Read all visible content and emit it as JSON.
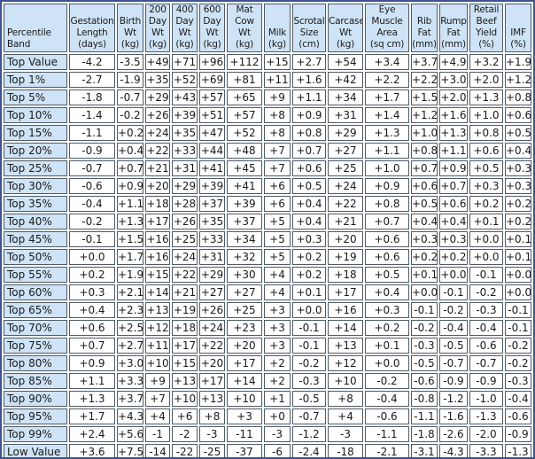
{
  "colors": {
    "header_bg": "#cfe3f6",
    "cell_border": "#4f5b66",
    "outer_border": "#3d548f",
    "text": "#1a1a1a"
  },
  "table": {
    "columns": [
      {
        "label": "Percentile\nBand"
      },
      {
        "label": "Gestation\nLength\n(days)"
      },
      {
        "label": "Birth\nWt\n(kg)"
      },
      {
        "label": "200\nDay\nWt\n(kg)"
      },
      {
        "label": "400\nDay\nWt\n(kg)"
      },
      {
        "label": "600\nDay\nWt\n(kg)"
      },
      {
        "label": "Mat\nCow\nWt\n(kg)"
      },
      {
        "label": "Milk\n(kg)"
      },
      {
        "label": "Scrotal\nSize\n(cm)"
      },
      {
        "label": "Carcase\nWt\n(kg)"
      },
      {
        "label": "Eye\nMuscle\nArea\n(sq cm)"
      },
      {
        "label": "Rib\nFat\n(mm)"
      },
      {
        "label": "Rump\nFat\n(mm)"
      },
      {
        "label": "Retail\nBeef\nYield\n(%)"
      },
      {
        "label": "IMF\n(%)"
      }
    ],
    "rows": [
      {
        "band": "Top Value",
        "values": [
          "-4.2",
          "-3.5",
          "+49",
          "+71",
          "+96",
          "+112",
          "+15",
          "+2.7",
          "+54",
          "+3.4",
          "+3.7",
          "+4.9",
          "+3.2",
          "+1.9"
        ]
      },
      {
        "band": "Top 1%",
        "values": [
          "-2.7",
          "-1.9",
          "+35",
          "+52",
          "+69",
          "+81",
          "+11",
          "+1.6",
          "+42",
          "+2.2",
          "+2.2",
          "+3.0",
          "+2.0",
          "+1.2"
        ]
      },
      {
        "band": "Top 5%",
        "values": [
          "-1.8",
          "-0.7",
          "+29",
          "+43",
          "+57",
          "+65",
          "+9",
          "+1.1",
          "+34",
          "+1.7",
          "+1.5",
          "+2.0",
          "+1.3",
          "+0.8"
        ]
      },
      {
        "band": "Top 10%",
        "values": [
          "-1.4",
          "-0.2",
          "+26",
          "+39",
          "+51",
          "+57",
          "+8",
          "+0.9",
          "+31",
          "+1.4",
          "+1.2",
          "+1.6",
          "+1.0",
          "+0.6"
        ]
      },
      {
        "band": "Top 15%",
        "values": [
          "-1.1",
          "+0.2",
          "+24",
          "+35",
          "+47",
          "+52",
          "+8",
          "+0.8",
          "+29",
          "+1.3",
          "+1.0",
          "+1.3",
          "+0.8",
          "+0.5"
        ]
      },
      {
        "band": "Top 20%",
        "values": [
          "-0.9",
          "+0.4",
          "+22",
          "+33",
          "+44",
          "+48",
          "+7",
          "+0.7",
          "+27",
          "+1.1",
          "+0.8",
          "+1.1",
          "+0.6",
          "+0.4"
        ]
      },
      {
        "band": "Top 25%",
        "values": [
          "-0.7",
          "+0.7",
          "+21",
          "+31",
          "+41",
          "+45",
          "+7",
          "+0.6",
          "+25",
          "+1.0",
          "+0.7",
          "+0.9",
          "+0.5",
          "+0.3"
        ]
      },
      {
        "band": "Top 30%",
        "values": [
          "-0.6",
          "+0.9",
          "+20",
          "+29",
          "+39",
          "+41",
          "+6",
          "+0.5",
          "+24",
          "+0.9",
          "+0.6",
          "+0.7",
          "+0.3",
          "+0.3"
        ]
      },
      {
        "band": "Top 35%",
        "values": [
          "-0.4",
          "+1.1",
          "+18",
          "+28",
          "+37",
          "+39",
          "+6",
          "+0.4",
          "+22",
          "+0.8",
          "+0.5",
          "+0.6",
          "+0.2",
          "+0.2"
        ]
      },
      {
        "band": "Top 40%",
        "values": [
          "-0.2",
          "+1.3",
          "+17",
          "+26",
          "+35",
          "+37",
          "+5",
          "+0.4",
          "+21",
          "+0.7",
          "+0.4",
          "+0.4",
          "+0.1",
          "+0.2"
        ]
      },
      {
        "band": "Top 45%",
        "values": [
          "-0.1",
          "+1.5",
          "+16",
          "+25",
          "+33",
          "+34",
          "+5",
          "+0.3",
          "+20",
          "+0.6",
          "+0.3",
          "+0.3",
          "+0.0",
          "+0.1"
        ]
      },
      {
        "band": "Top 50%",
        "values": [
          "+0.0",
          "+1.7",
          "+16",
          "+24",
          "+31",
          "+32",
          "+5",
          "+0.2",
          "+19",
          "+0.6",
          "+0.2",
          "+0.2",
          "+0.0",
          "+0.1"
        ]
      },
      {
        "band": "Top 55%",
        "values": [
          "+0.2",
          "+1.9",
          "+15",
          "+22",
          "+29",
          "+30",
          "+4",
          "+0.2",
          "+18",
          "+0.5",
          "+0.1",
          "+0.0",
          "-0.1",
          "+0.0"
        ]
      },
      {
        "band": "Top 60%",
        "values": [
          "+0.3",
          "+2.1",
          "+14",
          "+21",
          "+27",
          "+27",
          "+4",
          "+0.1",
          "+17",
          "+0.4",
          "+0.0",
          "-0.1",
          "-0.2",
          "+0.0"
        ]
      },
      {
        "band": "Top 65%",
        "values": [
          "+0.4",
          "+2.3",
          "+13",
          "+19",
          "+26",
          "+25",
          "+3",
          "+0.0",
          "+16",
          "+0.3",
          "-0.1",
          "-0.2",
          "-0.3",
          "-0.1"
        ]
      },
      {
        "band": "Top 70%",
        "values": [
          "+0.6",
          "+2.5",
          "+12",
          "+18",
          "+24",
          "+23",
          "+3",
          "-0.1",
          "+14",
          "+0.2",
          "-0.2",
          "-0.4",
          "-0.4",
          "-0.1"
        ]
      },
      {
        "band": "Top 75%",
        "values": [
          "+0.7",
          "+2.7",
          "+11",
          "+17",
          "+22",
          "+20",
          "+3",
          "-0.1",
          "+13",
          "+0.1",
          "-0.3",
          "-0.5",
          "-0.6",
          "-0.2"
        ]
      },
      {
        "band": "Top 80%",
        "values": [
          "+0.9",
          "+3.0",
          "+10",
          "+15",
          "+20",
          "+17",
          "+2",
          "-0.2",
          "+12",
          "+0.0",
          "-0.5",
          "-0.7",
          "-0.7",
          "-0.2"
        ]
      },
      {
        "band": "Top 85%",
        "values": [
          "+1.1",
          "+3.3",
          "+9",
          "+13",
          "+17",
          "+14",
          "+2",
          "-0.3",
          "+10",
          "-0.2",
          "-0.6",
          "-0.9",
          "-0.9",
          "-0.3"
        ]
      },
      {
        "band": "Top 90%",
        "values": [
          "+1.3",
          "+3.7",
          "+7",
          "+10",
          "+13",
          "+10",
          "+1",
          "-0.5",
          "+8",
          "-0.4",
          "-0.8",
          "-1.2",
          "-1.0",
          "-0.4"
        ]
      },
      {
        "band": "Top 95%",
        "values": [
          "+1.7",
          "+4.3",
          "+4",
          "+6",
          "+8",
          "+3",
          "+0",
          "-0.7",
          "+4",
          "-0.6",
          "-1.1",
          "-1.6",
          "-1.3",
          "-0.6"
        ]
      },
      {
        "band": "Top 99%",
        "values": [
          "+2.4",
          "+5.6",
          "-1",
          "-2",
          "-3",
          "-11",
          "-3",
          "-1.2",
          "-3",
          "-1.1",
          "-1.8",
          "-2.6",
          "-2.0",
          "-0.9"
        ]
      },
      {
        "band": "Low Value",
        "values": [
          "+3.6",
          "+7.5",
          "-14",
          "-22",
          "-25",
          "-37",
          "-6",
          "-2.4",
          "-18",
          "-2.1",
          "-3.1",
          "-4.3",
          "-3.3",
          "-1.3"
        ]
      }
    ]
  }
}
